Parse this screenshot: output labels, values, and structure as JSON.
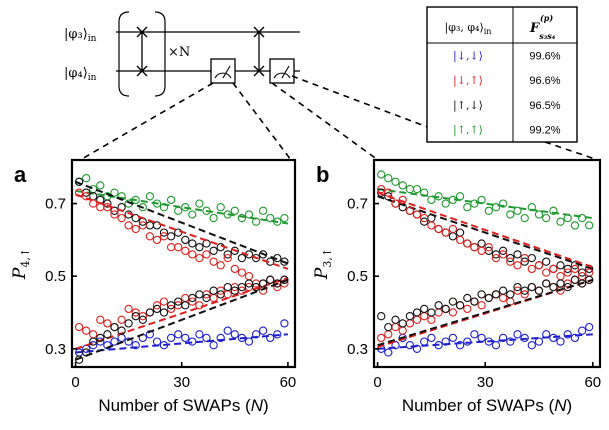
{
  "circuit": {
    "input_labels": [
      "|φ₃⟩",
      "|φ₄⟩"
    ],
    "input_subscript": "in",
    "repeat_label": "×N"
  },
  "fidelity_table": {
    "header_state": "|φ₃, φ₄⟩",
    "header_state_subscript": "in",
    "header_fidelity": "F",
    "header_fidelity_sup": "(p)",
    "header_fidelity_sub": "s₃s₄",
    "rows": [
      {
        "state": "|↓,↓⟩",
        "value": "99.6%",
        "color": "#1f1fd0"
      },
      {
        "state": "|↓,↑⟩",
        "value": "96.6%",
        "color": "#e0201f"
      },
      {
        "state": "|↑,↓⟩",
        "value": "96.5%",
        "color": "#111111"
      },
      {
        "state": "|↑,↑⟩",
        "value": "99.2%",
        "color": "#1e9a2e"
      }
    ]
  },
  "chart_data": [
    {
      "type": "scatter",
      "panel_label": "a",
      "xlabel_prefix": "Number of SWAPs (",
      "xlabel_var": "N",
      "xlabel_suffix": ")",
      "ylabel_main": "P",
      "ylabel_sub": "4,↑",
      "xlim": [
        -1,
        62
      ],
      "ylim": [
        0.25,
        0.82
      ],
      "xticks": [
        0,
        30,
        60
      ],
      "yticks": [
        0.3,
        0.5,
        0.7
      ],
      "ytick_labels": [
        "0.3",
        "0.5",
        "0.7"
      ],
      "series": [
        {
          "state": "|↑,↑⟩",
          "color": "#1e9a2e",
          "x": [
            1,
            3,
            5,
            7,
            9,
            11,
            13,
            15,
            17,
            19,
            21,
            23,
            25,
            27,
            29,
            31,
            33,
            35,
            37,
            39,
            41,
            43,
            45,
            47,
            49,
            51,
            53,
            55,
            57,
            59
          ],
          "y": [
            0.76,
            0.77,
            0.74,
            0.75,
            0.72,
            0.73,
            0.72,
            0.7,
            0.71,
            0.69,
            0.72,
            0.7,
            0.69,
            0.71,
            0.68,
            0.69,
            0.67,
            0.7,
            0.68,
            0.66,
            0.69,
            0.67,
            0.68,
            0.66,
            0.67,
            0.65,
            0.68,
            0.66,
            0.65,
            0.66
          ],
          "fit": {
            "x": [
              0,
              60
            ],
            "y": [
              0.735,
              0.645
            ]
          }
        },
        {
          "state": "|↑,↓⟩",
          "color": "#111111",
          "x": [
            1,
            3,
            5,
            7,
            9,
            11,
            13,
            15,
            17,
            19,
            21,
            23,
            25,
            27,
            29,
            31,
            33,
            35,
            37,
            39,
            41,
            43,
            45,
            47,
            49,
            51,
            53,
            55,
            57,
            59
          ],
          "y": [
            0.76,
            0.73,
            0.72,
            0.71,
            0.7,
            0.68,
            0.69,
            0.67,
            0.66,
            0.65,
            0.64,
            0.64,
            0.62,
            0.61,
            0.62,
            0.6,
            0.59,
            0.58,
            0.59,
            0.57,
            0.58,
            0.56,
            0.57,
            0.55,
            0.56,
            0.55,
            0.56,
            0.54,
            0.55,
            0.54
          ],
          "fit": {
            "x": [
              0,
              60
            ],
            "y": [
              0.76,
              0.535
            ]
          }
        },
        {
          "state": "|↓,↑⟩",
          "color": "#e0201f",
          "x": [
            1,
            3,
            5,
            7,
            9,
            11,
            13,
            15,
            17,
            19,
            21,
            23,
            25,
            27,
            29,
            31,
            33,
            35,
            37,
            39,
            41,
            43,
            45,
            47,
            49,
            51,
            53,
            55,
            57,
            59
          ],
          "y": [
            0.73,
            0.72,
            0.7,
            0.69,
            0.69,
            0.67,
            0.66,
            0.64,
            0.63,
            0.64,
            0.61,
            0.6,
            0.61,
            0.58,
            0.58,
            0.57,
            0.56,
            0.55,
            0.56,
            0.54,
            0.53,
            0.55,
            0.52,
            0.51,
            0.5,
            0.47,
            0.48,
            0.49,
            0.47,
            0.48
          ],
          "fit": {
            "x": [
              0,
              60
            ],
            "y": [
              0.725,
              0.52
            ]
          }
        },
        {
          "state": "|↓,↓⟩",
          "color": "#1f1fd0",
          "x": [
            1,
            3,
            5,
            7,
            9,
            11,
            13,
            15,
            17,
            19,
            21,
            23,
            25,
            27,
            29,
            31,
            33,
            35,
            37,
            39,
            41,
            43,
            45,
            47,
            49,
            51,
            53,
            55,
            57,
            59
          ],
          "y": [
            0.29,
            0.3,
            0.31,
            0.32,
            0.31,
            0.32,
            0.33,
            0.32,
            0.31,
            0.33,
            0.34,
            0.32,
            0.31,
            0.33,
            0.34,
            0.33,
            0.32,
            0.34,
            0.33,
            0.31,
            0.33,
            0.35,
            0.34,
            0.33,
            0.32,
            0.34,
            0.35,
            0.33,
            0.34,
            0.37
          ],
          "fit": {
            "x": [
              0,
              60
            ],
            "y": [
              0.29,
              0.34
            ]
          }
        },
        {
          "state": "|↓,↑⟩ rising",
          "color": "#e0201f",
          "x": [
            1,
            3,
            5,
            7,
            9,
            11,
            13,
            15,
            17,
            19,
            21,
            23,
            25,
            27,
            29,
            31,
            33,
            35,
            37,
            39,
            41,
            43,
            45,
            47,
            49,
            51,
            53,
            55,
            57,
            59
          ],
          "y": [
            0.36,
            0.35,
            0.34,
            0.38,
            0.37,
            0.36,
            0.38,
            0.41,
            0.4,
            0.39,
            0.4,
            0.42,
            0.43,
            0.41,
            0.42,
            0.44,
            0.43,
            0.42,
            0.45,
            0.44,
            0.46,
            0.45,
            0.47,
            0.46,
            0.47,
            0.48,
            0.46,
            0.49,
            0.48,
            0.49
          ],
          "fit": {
            "x": [
              0,
              60
            ],
            "y": [
              0.3,
              0.495
            ]
          }
        },
        {
          "state": "|↑,↓⟩ rising",
          "color": "#111111",
          "x": [
            1,
            3,
            5,
            7,
            9,
            11,
            13,
            15,
            17,
            19,
            21,
            23,
            25,
            27,
            29,
            31,
            33,
            35,
            37,
            39,
            41,
            43,
            45,
            47,
            49,
            51,
            53,
            55,
            57,
            59
          ],
          "y": [
            0.27,
            0.29,
            0.32,
            0.33,
            0.34,
            0.36,
            0.35,
            0.37,
            0.39,
            0.38,
            0.4,
            0.41,
            0.4,
            0.42,
            0.43,
            0.42,
            0.44,
            0.45,
            0.44,
            0.46,
            0.45,
            0.47,
            0.46,
            0.47,
            0.48,
            0.47,
            0.48,
            0.49,
            0.48,
            0.49
          ],
          "fit": {
            "x": [
              0,
              60
            ],
            "y": [
              0.27,
              0.49
            ]
          }
        }
      ]
    },
    {
      "type": "scatter",
      "panel_label": "b",
      "xlabel_prefix": "Number of SWAPs (",
      "xlabel_var": "N",
      "xlabel_suffix": ")",
      "ylabel_main": "P",
      "ylabel_sub": "3,↑",
      "xlim": [
        -1,
        62
      ],
      "ylim": [
        0.25,
        0.82
      ],
      "xticks": [
        0,
        30,
        60
      ],
      "yticks": [
        0.3,
        0.5,
        0.7
      ],
      "ytick_labels": [
        "0.3",
        "0.5",
        "0.7"
      ],
      "series": [
        {
          "state": "|↑,↑⟩",
          "color": "#1e9a2e",
          "x": [
            1,
            3,
            5,
            7,
            9,
            11,
            13,
            15,
            17,
            19,
            21,
            23,
            25,
            27,
            29,
            31,
            33,
            35,
            37,
            39,
            41,
            43,
            45,
            47,
            49,
            51,
            53,
            55,
            57,
            59
          ],
          "y": [
            0.78,
            0.77,
            0.76,
            0.75,
            0.74,
            0.74,
            0.73,
            0.71,
            0.72,
            0.7,
            0.71,
            0.72,
            0.69,
            0.7,
            0.71,
            0.68,
            0.69,
            0.7,
            0.67,
            0.68,
            0.66,
            0.69,
            0.67,
            0.66,
            0.68,
            0.65,
            0.66,
            0.64,
            0.66,
            0.64
          ],
          "fit": {
            "x": [
              0,
              60
            ],
            "y": [
              0.74,
              0.66
            ]
          }
        },
        {
          "state": "|↑,↓⟩",
          "color": "#111111",
          "x": [
            1,
            3,
            5,
            7,
            9,
            11,
            13,
            15,
            17,
            19,
            21,
            23,
            25,
            27,
            29,
            31,
            33,
            35,
            37,
            39,
            41,
            43,
            45,
            47,
            49,
            51,
            53,
            55,
            57,
            59
          ],
          "y": [
            0.73,
            0.72,
            0.7,
            0.69,
            0.68,
            0.67,
            0.65,
            0.66,
            0.63,
            0.62,
            0.61,
            0.62,
            0.59,
            0.58,
            0.59,
            0.57,
            0.56,
            0.57,
            0.55,
            0.56,
            0.54,
            0.55,
            0.53,
            0.54,
            0.52,
            0.53,
            0.52,
            0.53,
            0.51,
            0.52
          ],
          "fit": {
            "x": [
              0,
              60
            ],
            "y": [
              0.72,
              0.52
            ]
          }
        },
        {
          "state": "|↓,↑⟩",
          "color": "#e0201f",
          "x": [
            1,
            3,
            5,
            7,
            9,
            11,
            13,
            15,
            17,
            19,
            21,
            23,
            25,
            27,
            29,
            31,
            33,
            35,
            37,
            39,
            41,
            43,
            45,
            47,
            49,
            51,
            53,
            55,
            57,
            59
          ],
          "y": [
            0.74,
            0.73,
            0.7,
            0.71,
            0.68,
            0.67,
            0.66,
            0.64,
            0.63,
            0.62,
            0.63,
            0.6,
            0.59,
            0.58,
            0.57,
            0.58,
            0.55,
            0.56,
            0.54,
            0.53,
            0.55,
            0.52,
            0.53,
            0.51,
            0.52,
            0.5,
            0.51,
            0.52,
            0.5,
            0.51
          ],
          "fit": {
            "x": [
              0,
              60
            ],
            "y": [
              0.73,
              0.525
            ]
          }
        },
        {
          "state": "|↓,↓⟩",
          "color": "#1f1fd0",
          "x": [
            1,
            3,
            5,
            7,
            9,
            11,
            13,
            15,
            17,
            19,
            21,
            23,
            25,
            27,
            29,
            31,
            33,
            35,
            37,
            39,
            41,
            43,
            45,
            47,
            49,
            51,
            53,
            55,
            57,
            59
          ],
          "y": [
            0.3,
            0.29,
            0.31,
            0.33,
            0.31,
            0.3,
            0.32,
            0.33,
            0.31,
            0.32,
            0.33,
            0.31,
            0.32,
            0.34,
            0.33,
            0.32,
            0.31,
            0.33,
            0.32,
            0.34,
            0.33,
            0.31,
            0.32,
            0.34,
            0.33,
            0.32,
            0.34,
            0.33,
            0.35,
            0.36
          ],
          "fit": {
            "x": [
              0,
              60
            ],
            "y": [
              0.3,
              0.34
            ]
          }
        },
        {
          "state": "|↓,↑⟩ rising",
          "color": "#e0201f",
          "x": [
            1,
            3,
            5,
            7,
            9,
            11,
            13,
            15,
            17,
            19,
            21,
            23,
            25,
            27,
            29,
            31,
            33,
            35,
            37,
            39,
            41,
            43,
            45,
            47,
            49,
            51,
            53,
            55,
            57,
            59
          ],
          "y": [
            0.33,
            0.34,
            0.36,
            0.35,
            0.37,
            0.38,
            0.39,
            0.38,
            0.4,
            0.41,
            0.4,
            0.42,
            0.41,
            0.43,
            0.42,
            0.44,
            0.45,
            0.44,
            0.43,
            0.46,
            0.45,
            0.47,
            0.46,
            0.48,
            0.47,
            0.46,
            0.48,
            0.49,
            0.48,
            0.49
          ],
          "fit": {
            "x": [
              0,
              60
            ],
            "y": [
              0.305,
              0.49
            ]
          }
        },
        {
          "state": "|↑,↓⟩ rising",
          "color": "#111111",
          "x": [
            1,
            3,
            5,
            7,
            9,
            11,
            13,
            15,
            17,
            19,
            21,
            23,
            25,
            27,
            29,
            31,
            33,
            35,
            37,
            39,
            41,
            43,
            45,
            47,
            49,
            51,
            53,
            55,
            57,
            59
          ],
          "y": [
            0.39,
            0.36,
            0.38,
            0.37,
            0.39,
            0.4,
            0.41,
            0.4,
            0.42,
            0.41,
            0.43,
            0.42,
            0.44,
            0.43,
            0.45,
            0.44,
            0.45,
            0.46,
            0.45,
            0.47,
            0.46,
            0.47,
            0.46,
            0.48,
            0.47,
            0.48,
            0.47,
            0.49,
            0.48,
            0.49
          ],
          "fit": {
            "x": [
              0,
              60
            ],
            "y": [
              0.31,
              0.49
            ]
          }
        }
      ]
    }
  ]
}
